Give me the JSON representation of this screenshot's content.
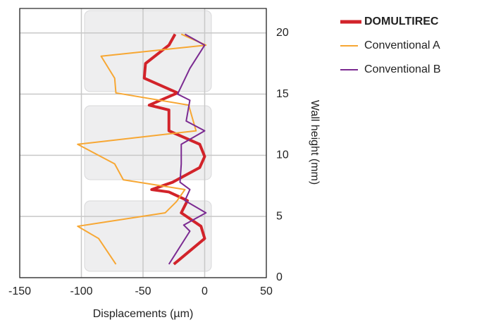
{
  "chart_data": {
    "type": "line",
    "xlabel": "Displacements (µm)",
    "ylabel": "Wall height (mm)",
    "xlim": [
      -150,
      50
    ],
    "xticks": [
      -150,
      -100,
      -50,
      0,
      50
    ],
    "ylim": [
      0,
      22
    ],
    "yticks": [
      0,
      5,
      10,
      15,
      20
    ],
    "grid": true,
    "series": [
      {
        "name": "DOMULTIREC",
        "color": "#d2232a",
        "x": [
          -25,
          0,
          -3,
          -19,
          -14,
          -29,
          -43,
          -26,
          -4,
          0,
          -4,
          -29,
          -29,
          -45,
          -22,
          -49,
          -48,
          -29,
          -24
        ],
        "values": [
          1.1,
          3.2,
          4.2,
          5.3,
          6.3,
          7.0,
          7.2,
          7.8,
          9.0,
          9.9,
          10.9,
          12.0,
          13.7,
          14.1,
          15.1,
          16.3,
          17.5,
          19.0,
          19.9
        ]
      },
      {
        "name": "Conventional A",
        "color": "#f7a733",
        "x": [
          -72,
          -86,
          -103,
          -32,
          -23,
          -16,
          -66,
          -73,
          -103,
          -7,
          -13,
          -72,
          -73,
          -84,
          1,
          -19
        ],
        "values": [
          1.1,
          3.2,
          4.2,
          5.3,
          6.2,
          7.2,
          8.0,
          9.3,
          10.9,
          12.0,
          14.1,
          15.1,
          16.3,
          18.1,
          19.0,
          19.9
        ]
      },
      {
        "name": "Conventional B",
        "color": "#7b2a91",
        "x": [
          -29,
          -12,
          -17,
          1,
          -16,
          -12,
          -20,
          -19,
          -19,
          0,
          -15,
          -12,
          -22,
          -12,
          0,
          -16
        ],
        "values": [
          1.1,
          3.8,
          4.3,
          5.3,
          6.3,
          7.2,
          7.8,
          9.3,
          10.9,
          12.0,
          12.8,
          14.5,
          15.0,
          17.1,
          19.0,
          19.9
        ]
      }
    ]
  }
}
